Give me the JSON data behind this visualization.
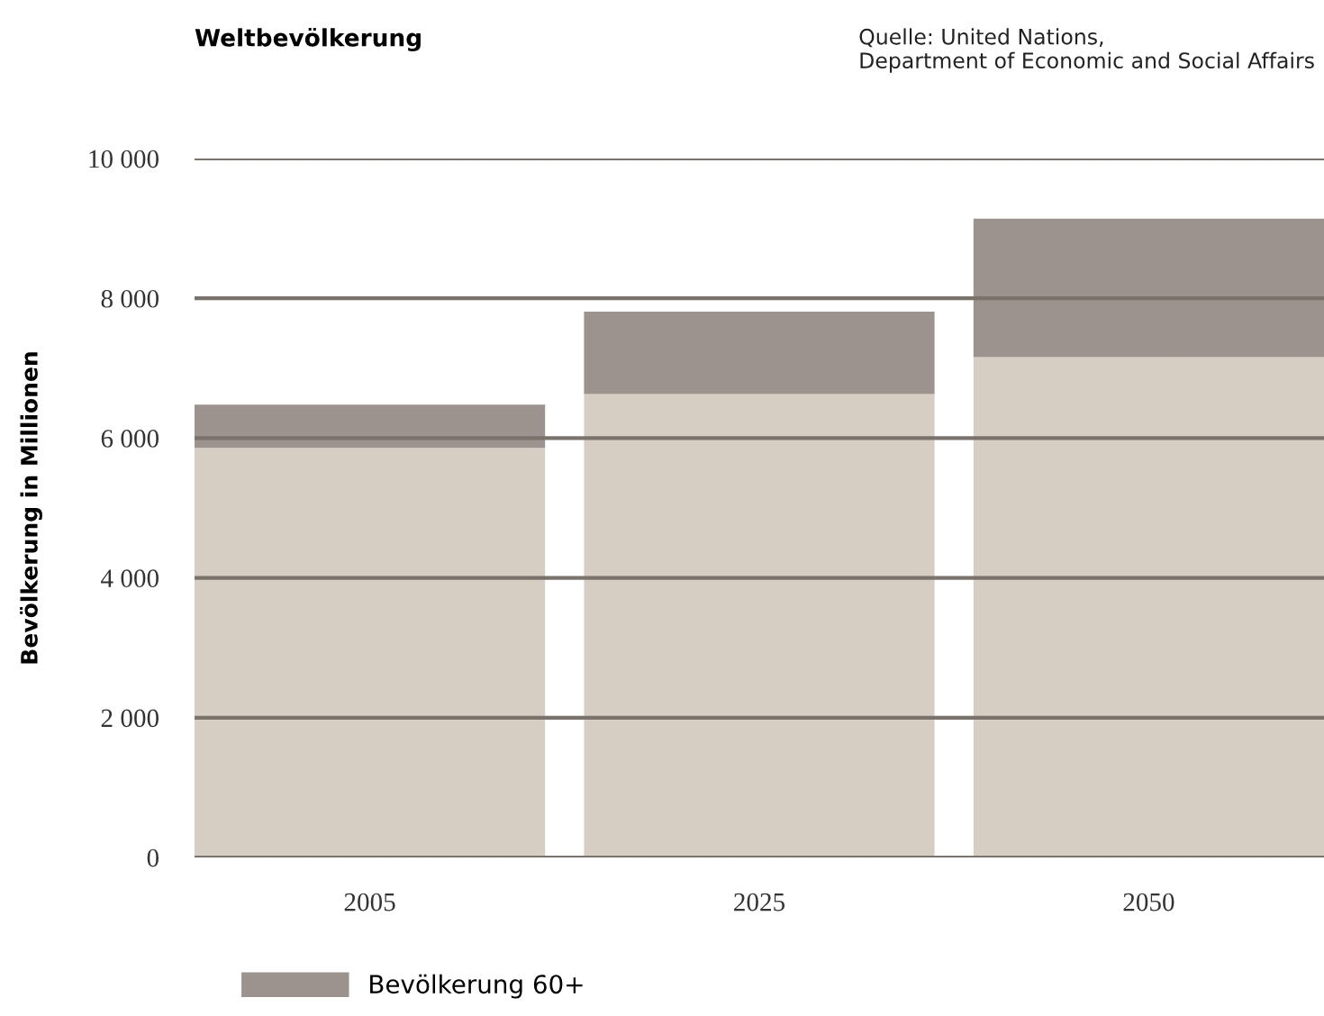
{
  "chart_data": {
    "type": "bar",
    "title": "Weltbevölkerung",
    "ylabel": "Bevölkerung in Millionen",
    "annotations": [
      "Quelle: United Nations,\nDepartment of Economic and Social Affairs"
    ],
    "categories": [
      "2005",
      "2025",
      "2050"
    ],
    "stacked": true,
    "series": [
      {
        "color": "#d6cec3",
        "values": [
          5860,
          6630,
          7160
        ]
      },
      {
        "name": "Bevölkerung 60+",
        "color": "#9c928e",
        "values": [
          620,
          1180,
          1980
        ]
      }
    ],
    "ylim": [
      0,
      10000
    ],
    "yticks": [
      0,
      {
        "value": 2000,
        "label": "2 000"
      },
      {
        "value": 4000,
        "label": "4 000"
      },
      {
        "value": 6000,
        "label": "6 000"
      },
      {
        "value": 8000,
        "label": "8 000"
      },
      {
        "value": 10000,
        "label": "10 000"
      }
    ],
    "grid": "y",
    "legend": "bottom left"
  }
}
